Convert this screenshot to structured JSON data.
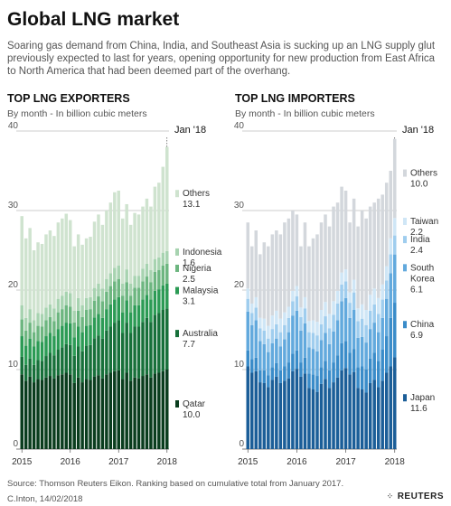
{
  "header": {
    "title": "Global LNG market",
    "subtitle": "Soaring gas demand from China, India, and Southeast Asia is sucking up an LNG supply glut previously expected to last for years, opening opportunity for new production from East Africa to North America that had been deemed part of the overhang."
  },
  "footer": {
    "source": "Source: Thomson Reuters Eikon. Ranking based on cumulative total from January 2017.",
    "credit": "C.Inton,  14/02/2018",
    "brand": "REUTERS",
    "brand_icon": "reuters-dots-icon"
  },
  "chart_data": [
    {
      "type": "bar",
      "stacked": true,
      "title": "TOP LNG EXPORTERS",
      "subtitle": "By month - In billion cubic meters",
      "annotation": "Jan '18",
      "x_ticks": [
        "2015",
        "2016",
        "2017",
        "2018"
      ],
      "x_start": "2015-01",
      "x_end": "2018-01",
      "y_ticks": [
        0,
        10,
        20,
        30,
        40
      ],
      "ylim": [
        0,
        40
      ],
      "grid": true,
      "total": [
        29.3,
        26.5,
        27.8,
        25.0,
        26.0,
        25.8,
        27.0,
        27.5,
        26.8,
        28.5,
        29.0,
        29.6,
        28.8,
        25.5,
        27.0,
        25.7,
        26.5,
        26.7,
        28.6,
        29.5,
        28.2,
        30.0,
        31.0,
        32.3,
        32.5,
        29.0,
        30.8,
        28.2,
        29.7,
        29.5,
        30.5,
        31.5,
        30.5,
        33.0,
        33.5,
        35.5,
        38.0
      ],
      "series": [
        {
          "name": "Qatar",
          "value_label": "10.0",
          "color": "#0a3d1e",
          "values": [
            9.4,
            8.6,
            9.1,
            8.4,
            8.8,
            8.7,
            9.0,
            9.2,
            8.9,
            9.3,
            9.4,
            9.6,
            9.4,
            8.5,
            9.0,
            8.4,
            8.8,
            8.7,
            9.1,
            9.3,
            8.9,
            9.4,
            9.6,
            9.8,
            9.9,
            8.8,
            9.6,
            8.6,
            9.0,
            8.9,
            9.2,
            9.4,
            9.0,
            9.5,
            9.6,
            9.8,
            10.0
          ]
        },
        {
          "name": "Australia",
          "value_label": "7.7",
          "color": "#17703a",
          "values": [
            2.2,
            2.0,
            2.3,
            2.2,
            2.4,
            2.4,
            2.7,
            2.9,
            2.9,
            3.2,
            3.4,
            3.6,
            3.7,
            3.5,
            3.9,
            3.9,
            4.2,
            4.4,
            4.8,
            5.0,
            5.0,
            5.5,
            5.8,
            6.1,
            6.3,
            5.8,
            6.3,
            6.0,
            6.4,
            6.5,
            6.8,
            7.1,
            7.0,
            7.4,
            7.5,
            7.7,
            7.7
          ]
        },
        {
          "name": "Malaysia",
          "value_label": "3.1",
          "color": "#2c9b55",
          "values": [
            2.6,
            2.4,
            2.5,
            2.3,
            2.4,
            2.4,
            2.5,
            2.5,
            2.4,
            2.6,
            2.7,
            2.7,
            2.7,
            2.4,
            2.5,
            2.4,
            2.5,
            2.5,
            2.6,
            2.7,
            2.6,
            2.7,
            2.8,
            2.9,
            2.9,
            2.6,
            2.8,
            2.6,
            2.7,
            2.7,
            2.8,
            2.9,
            2.8,
            3.0,
            3.0,
            3.1,
            3.1
          ]
        },
        {
          "name": "Nigeria",
          "value_label": "2.5",
          "color": "#6db680",
          "values": [
            2.1,
            1.9,
            2.0,
            1.8,
            1.9,
            1.9,
            2.0,
            2.0,
            1.9,
            2.1,
            2.1,
            2.2,
            2.1,
            1.9,
            2.0,
            1.9,
            2.0,
            2.0,
            2.1,
            2.2,
            2.1,
            2.2,
            2.3,
            2.3,
            2.3,
            2.1,
            2.3,
            2.1,
            2.2,
            2.2,
            2.3,
            2.3,
            2.2,
            2.4,
            2.4,
            2.5,
            2.5
          ]
        },
        {
          "name": "Indonesia",
          "value_label": "1.6",
          "color": "#a7d3b0",
          "values": [
            1.8,
            1.6,
            1.7,
            1.5,
            1.6,
            1.6,
            1.6,
            1.6,
            1.6,
            1.7,
            1.7,
            1.7,
            1.7,
            1.5,
            1.6,
            1.5,
            1.5,
            1.5,
            1.6,
            1.6,
            1.6,
            1.6,
            1.6,
            1.7,
            1.7,
            1.5,
            1.6,
            1.5,
            1.5,
            1.5,
            1.6,
            1.6,
            1.5,
            1.6,
            1.6,
            1.6,
            1.6
          ]
        },
        {
          "name": "Others",
          "value_label": "13.1",
          "color": "#cfe3cf",
          "values": [
            11.2,
            10.0,
            10.2,
            8.8,
            8.9,
            8.8,
            9.2,
            9.3,
            9.1,
            9.6,
            9.7,
            9.8,
            9.2,
            8.3,
            8.0,
            7.6,
            7.5,
            7.6,
            8.3,
            8.7,
            8.0,
            8.6,
            8.9,
            9.5,
            9.4,
            8.2,
            8.2,
            7.4,
            7.9,
            7.7,
            7.8,
            8.2,
            8.0,
            9.1,
            9.4,
            10.8,
            13.1
          ]
        }
      ]
    },
    {
      "type": "bar",
      "stacked": true,
      "title": "TOP LNG IMPORTERS",
      "subtitle": "By month - In billion cubic meters",
      "annotation": "Jan '18",
      "x_ticks": [
        "2015",
        "2016",
        "2017",
        "2018"
      ],
      "x_start": "2015-01",
      "x_end": "2018-01",
      "y_ticks": [
        0,
        10,
        20,
        30,
        40
      ],
      "ylim": [
        0,
        40
      ],
      "grid": true,
      "total": [
        28.5,
        25.5,
        27.5,
        24.5,
        26.0,
        25.5,
        27.0,
        27.5,
        27.0,
        28.5,
        29.0,
        30.0,
        29.5,
        25.5,
        28.5,
        25.5,
        26.5,
        27.0,
        28.5,
        29.5,
        28.0,
        30.5,
        31.0,
        33.0,
        32.5,
        28.5,
        31.5,
        28.0,
        30.0,
        29.0,
        30.5,
        31.0,
        31.5,
        32.0,
        33.5,
        35.0,
        39.0
      ],
      "series": [
        {
          "name": "Japan",
          "value_label": "11.6",
          "color": "#1b5e98",
          "values": [
            10.4,
            9.6,
            9.8,
            8.4,
            8.3,
            7.8,
            8.7,
            9.1,
            8.3,
            8.6,
            8.9,
            9.8,
            10.1,
            9.1,
            9.5,
            7.7,
            7.5,
            7.2,
            8.2,
            8.8,
            7.7,
            8.4,
            9.0,
            9.9,
            10.2,
            9.4,
            9.7,
            7.7,
            7.5,
            7.1,
            8.3,
            8.7,
            7.8,
            8.6,
            9.6,
            10.4,
            11.6
          ]
        },
        {
          "name": "China",
          "value_label": "6.9",
          "color": "#3a8cc9",
          "values": [
            2.0,
            1.7,
            1.7,
            1.5,
            1.6,
            1.5,
            1.6,
            1.7,
            1.6,
            1.8,
            2.0,
            2.2,
            2.3,
            1.8,
            2.0,
            1.8,
            1.9,
            2.0,
            2.1,
            2.3,
            2.2,
            2.5,
            2.8,
            3.4,
            3.4,
            2.7,
            2.9,
            2.6,
            2.9,
            2.9,
            3.1,
            3.4,
            3.3,
            3.9,
            4.6,
            6.1,
            6.9
          ]
        },
        {
          "name": "South Korea",
          "value_label": "6.1",
          "color": "#62a9dd",
          "values": [
            4.9,
            4.3,
            4.7,
            3.7,
            3.3,
            2.9,
            3.0,
            3.1,
            3.0,
            3.4,
            3.8,
            4.8,
            5.0,
            4.0,
            4.3,
            3.3,
            3.2,
            3.1,
            3.4,
            3.5,
            3.3,
            3.9,
            4.4,
            5.3,
            5.4,
            4.4,
            4.9,
            3.7,
            3.7,
            3.4,
            3.7,
            3.8,
            3.6,
            4.0,
            4.7,
            5.6,
            6.1
          ]
        },
        {
          "name": "India",
          "value_label": "2.4",
          "color": "#9fcdee",
          "values": [
            1.6,
            1.5,
            1.6,
            1.6,
            1.7,
            1.7,
            1.8,
            1.8,
            1.8,
            1.8,
            1.8,
            1.8,
            1.8,
            1.7,
            1.9,
            1.9,
            2.0,
            2.0,
            2.0,
            2.1,
            2.0,
            2.1,
            2.1,
            2.1,
            2.1,
            1.9,
            2.2,
            2.1,
            2.3,
            2.2,
            2.3,
            2.3,
            2.3,
            2.3,
            2.3,
            2.4,
            2.4
          ]
        },
        {
          "name": "Taiwan",
          "value_label": "2.2",
          "color": "#cfe6f6",
          "values": [
            1.3,
            1.2,
            1.3,
            1.3,
            1.5,
            1.6,
            1.7,
            1.7,
            1.7,
            1.6,
            1.4,
            1.3,
            1.3,
            1.2,
            1.4,
            1.4,
            1.6,
            1.7,
            1.8,
            1.8,
            1.8,
            1.7,
            1.6,
            1.5,
            1.5,
            1.3,
            1.6,
            1.6,
            1.8,
            1.9,
            2.0,
            2.0,
            2.0,
            1.9,
            1.8,
            2.0,
            2.2
          ]
        },
        {
          "name": "Others",
          "value_label": "10.0",
          "color": "#d3d7dc",
          "values": [
            8.3,
            7.2,
            8.4,
            8.0,
            9.6,
            10.0,
            10.2,
            10.1,
            10.6,
            11.3,
            11.1,
            10.1,
            9.0,
            7.7,
            9.4,
            9.4,
            10.3,
            11.0,
            11.0,
            11.0,
            11.0,
            11.9,
            11.1,
            10.8,
            9.9,
            8.8,
            10.2,
            10.3,
            11.8,
            11.5,
            11.1,
            10.8,
            12.5,
            11.3,
            10.5,
            8.5,
            10.0
          ]
        }
      ]
    }
  ]
}
